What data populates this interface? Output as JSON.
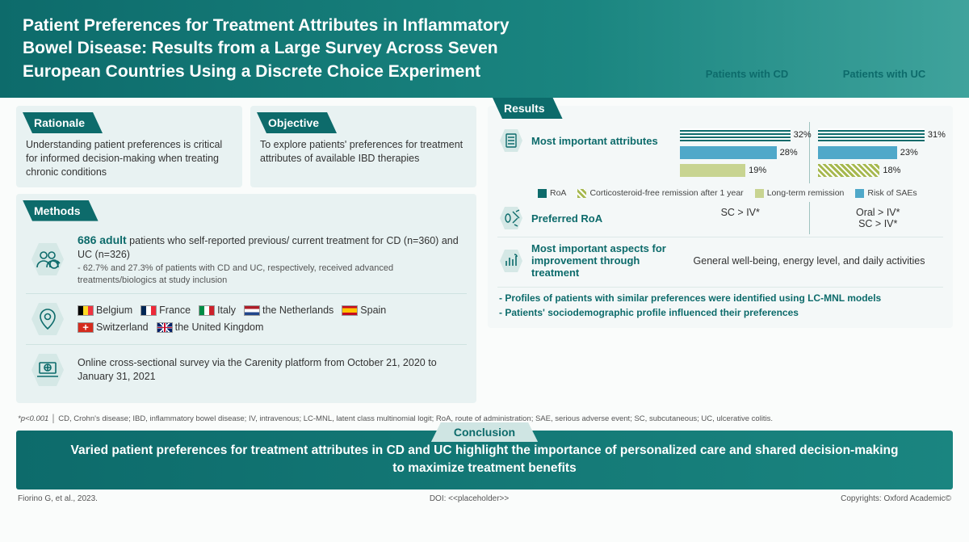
{
  "colors": {
    "teal_dark": "#0d6b6b",
    "teal_mid": "#1a8580",
    "panel_bg": "#e8f2f2",
    "panel_bg_light": "#f4f8f8"
  },
  "header": {
    "title": "Patient Preferences for Treatment Attributes in Inflammatory Bowel Disease: Results from a Large Survey Across Seven European Countries Using a Discrete Choice Experiment"
  },
  "results_header": {
    "col1": "Patients with CD",
    "col2": "Patients with UC"
  },
  "sections": {
    "rationale": {
      "label": "Rationale",
      "text": "Understanding patient preferences is critical for informed decision-making when treating chronic conditions"
    },
    "objective": {
      "label": "Objective",
      "text": "To explore patients' preferences for treatment attributes of available IBD therapies"
    },
    "methods": {
      "label": "Methods",
      "population_lead": "686 adult",
      "population_rest": " patients who self-reported previous/ current treatment for CD (n=360) and UC (n=326)",
      "population_sub": "- 62.7% and 27.3% of patients with CD and UC, respectively, received advanced treatments/biologics at study inclusion",
      "countries": [
        {
          "flag": "be",
          "name": "Belgium"
        },
        {
          "flag": "fr",
          "name": "France"
        },
        {
          "flag": "it",
          "name": "Italy"
        },
        {
          "flag": "nl",
          "name": "the Netherlands"
        },
        {
          "flag": "es",
          "name": "Spain"
        },
        {
          "flag": "ch",
          "name": "Switzerland"
        },
        {
          "flag": "uk",
          "name": "the United Kingdom"
        }
      ],
      "survey": "Online cross-sectional survey via the Carenity platform from October 21, 2020 to January 31, 2021"
    },
    "results": {
      "label": "Results",
      "row1_label": "Most important attributes",
      "legend": [
        {
          "name": "RoA",
          "color": "#0d6b6b",
          "pattern": "solid"
        },
        {
          "name": "Corticosteroid-free remission after 1 year",
          "color": "#a6b84f",
          "pattern": "stripes"
        },
        {
          "name": "Long-term remission",
          "color": "#c8d491",
          "pattern": "solid"
        },
        {
          "name": "Risk of SAEs",
          "color": "#4fa8c9",
          "pattern": "solid"
        }
      ],
      "chart": {
        "type": "horizontal-bar",
        "max_pct": 35,
        "cd": [
          {
            "series": "RoA",
            "pct": 32,
            "color": "#0d6b6b",
            "pattern": "stripes-h"
          },
          {
            "series": "Risk of SAEs",
            "pct": 28,
            "color": "#4fa8c9",
            "pattern": "solid"
          },
          {
            "series": "Long-term remission",
            "pct": 19,
            "color": "#c8d491",
            "pattern": "solid"
          }
        ],
        "uc": [
          {
            "series": "RoA",
            "pct": 31,
            "color": "#0d6b6b",
            "pattern": "stripes-h"
          },
          {
            "series": "Risk of SAEs",
            "pct": 23,
            "color": "#4fa8c9",
            "pattern": "solid"
          },
          {
            "series": "Corticosteroid-free remission after 1 year",
            "pct": 18,
            "color": "#a6b84f",
            "pattern": "stripes-d"
          }
        ]
      },
      "row2_label": "Preferred RoA",
      "row2_cd": "SC > IV*",
      "row2_uc": "Oral > IV*\nSC > IV*",
      "row3_label": "Most important aspects for improvement through treatment",
      "row3_text": "General well-being, energy level, and daily activities",
      "findings": [
        "Profiles of patients with similar preferences were identified using LC-MNL models",
        "Patients' sociodemographic profile influenced their preferences"
      ]
    }
  },
  "footnote": {
    "p": "*p<0.001",
    "abbr": "CD, Crohn's disease; IBD, inflammatory bowel disease; IV, intravenous; LC-MNL, latent class multinomial logit; RoA, route of administration; SAE, serious adverse event; SC, subcutaneous; UC, ulcerative colitis."
  },
  "conclusion": {
    "label": "Conclusion",
    "text": "Varied patient preferences for treatment attributes in CD and UC highlight the importance of personalized care and shared decision-making to maximize treatment benefits"
  },
  "footer": {
    "left": "Fiorino G, et al., 2023.",
    "mid": "DOI: <<placeholder>>",
    "right": "Copyrights: Oxford Academic©"
  }
}
